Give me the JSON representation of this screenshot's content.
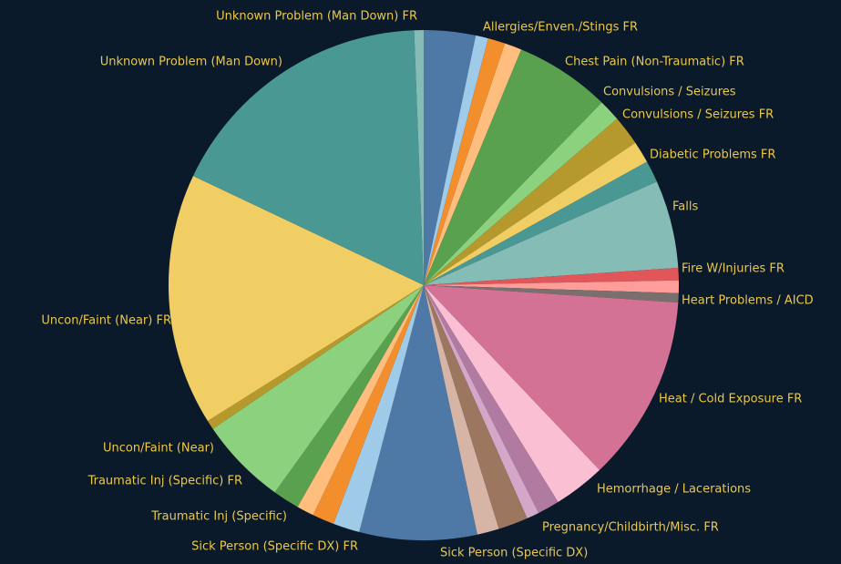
{
  "chart_data": {
    "type": "pie",
    "categories": [
      null,
      null,
      null,
      "Allergies/Enven./Stings FR",
      "Chest Pain (Non-Traumatic) FR",
      "Convulsions / Seizures",
      "Convulsions / Seizures FR",
      null,
      "Diabetic Problems FR",
      "Falls",
      null,
      "Fire W/Injuries FR",
      "Heart Problems / AICD",
      "Heat / Cold Exposure FR",
      null,
      "Hemorrhage / Lacerations",
      null,
      "Pregnancy/Childbirth/Misc. FR",
      null,
      "Sick Person (Specific DX)",
      "Sick Person (Specific DX) FR",
      null,
      "Traumatic Inj (Specific)",
      null,
      "Traumatic Inj (Specific) FR",
      "Uncon/Faint (Near)",
      "Uncon/Faint (Near) FR",
      "Unknown Problem (Man Down)",
      "Unknown Problem (Man Down) FR"
    ],
    "values": [
      3.3,
      0.8,
      1.1,
      1.1,
      6.1,
      1.4,
      1.9,
      1.4,
      1.4,
      5.6,
      0.8,
      0.8,
      0.6,
      11.9,
      3.3,
      1.4,
      0.8,
      1.9,
      1.4,
      7.5,
      1.7,
      1.4,
      1.1,
      1.7,
      5.6,
      0.6,
      16.1,
      17.5,
      0.6
    ],
    "colors": [
      "#4e79a7",
      "#a0cbe8",
      "#f28e2b",
      "#ffbe7d",
      "#59a14f",
      "#8cd17d",
      "#b6992d",
      "#f1ce63",
      "#499894",
      "#86bcb6",
      "#e15759",
      "#ff9d9a",
      "#79706e",
      "#d37295",
      "#fabfd2",
      "#b07aa1",
      "#d4a6c8",
      "#9d7660",
      "#d7b5a6",
      "#4e79a7",
      "#a0cbe8",
      "#f28e2b",
      "#ffbe7d",
      "#59a14f",
      "#8cd17d",
      "#b6992d",
      "#f1ce63",
      "#499894",
      "#86bcb6"
    ]
  }
}
